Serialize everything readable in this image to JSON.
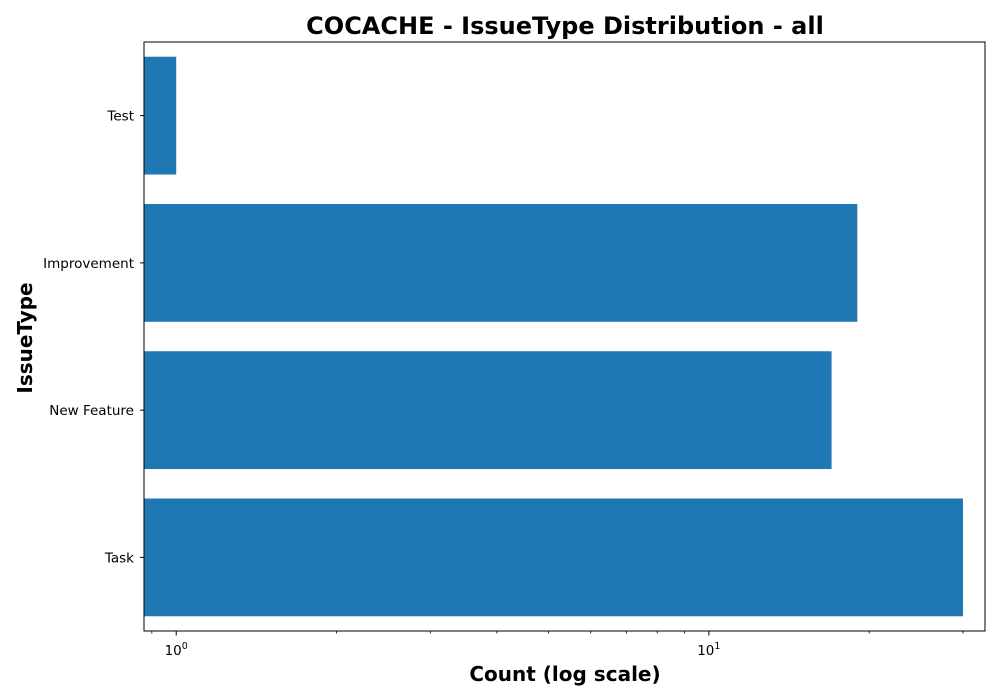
{
  "chart_data": {
    "type": "bar",
    "orientation": "horizontal",
    "title": "COCACHE - IssueType Distribution - all",
    "xlabel": "Count (log scale)",
    "ylabel": "IssueType",
    "xscale": "log",
    "xlim": [
      0.87,
      33
    ],
    "categories": [
      "Test",
      "Improvement",
      "New Feature",
      "Task"
    ],
    "values": [
      1,
      19,
      17,
      30
    ],
    "x_ticks": [
      {
        "value": 1,
        "base": "10",
        "exp": "0"
      },
      {
        "value": 10,
        "base": "10",
        "exp": "1"
      }
    ],
    "bar_color": "#1f77b4",
    "grid": false,
    "legend": "none"
  }
}
